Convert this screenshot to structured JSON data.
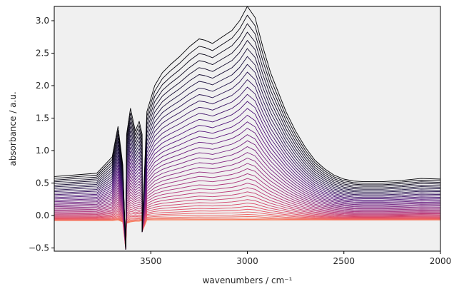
{
  "chart_data": {
    "type": "line",
    "title": "",
    "xlabel": "wavenumbers / cm⁻¹",
    "ylabel": "absorbance / a.u.",
    "xlim": [
      4000,
      2000
    ],
    "ylim": [
      -0.55,
      3.22
    ],
    "x_reversed": true,
    "grid": false,
    "legend": "none",
    "background": "#f0f0f0",
    "colormap": "magma (dark = highest absorbance, pink = lowest)",
    "x_ticks": [
      {
        "value": 3500,
        "label": "3500"
      },
      {
        "value": 3000,
        "label": "3000"
      },
      {
        "value": 2500,
        "label": "2500"
      },
      {
        "value": 2000,
        "label": "2000"
      }
    ],
    "y_ticks": [
      {
        "value": -0.5,
        "label": "−0.5"
      },
      {
        "value": 0.0,
        "label": "0.0"
      },
      {
        "value": 0.5,
        "label": "0.5"
      },
      {
        "value": 1.0,
        "label": "1.0"
      },
      {
        "value": 1.5,
        "label": "1.5"
      },
      {
        "value": 2.0,
        "label": "2.0"
      },
      {
        "value": 2.5,
        "label": "2.5"
      },
      {
        "value": 3.0,
        "label": "3.0"
      }
    ],
    "series_count": 40,
    "series_shape": {
      "x": [
        4000,
        3780,
        3700,
        3670,
        3645,
        3625,
        3605,
        3580,
        3560,
        3545,
        3520,
        3480,
        3440,
        3400,
        3350,
        3300,
        3250,
        3220,
        3180,
        3130,
        3080,
        3040,
        3000,
        2960,
        2920,
        2880,
        2840,
        2800,
        2750,
        2700,
        2650,
        2600,
        2550,
        2500,
        2450,
        2400,
        2300,
        2200,
        2100,
        2000
      ],
      "top_y": [
        0.6,
        0.65,
        0.9,
        1.37,
        0.78,
        1.25,
        1.65,
        1.3,
        1.45,
        1.25,
        1.6,
        2.0,
        2.2,
        2.32,
        2.45,
        2.6,
        2.72,
        2.7,
        2.65,
        2.75,
        2.85,
        3.0,
        3.22,
        3.05,
        2.6,
        2.2,
        1.9,
        1.6,
        1.3,
        1.05,
        0.85,
        0.72,
        0.62,
        0.56,
        0.53,
        0.52,
        0.52,
        0.54,
        0.57,
        0.56
      ],
      "bottom_y": [
        -0.08,
        -0.08,
        -0.08,
        -0.07,
        -0.1,
        -0.12,
        -0.1,
        -0.09,
        -0.09,
        -0.08,
        -0.07,
        -0.07,
        -0.07,
        -0.07,
        -0.07,
        -0.07,
        -0.07,
        -0.07,
        -0.07,
        -0.07,
        -0.07,
        -0.07,
        -0.07,
        -0.07,
        -0.07,
        -0.07,
        -0.07,
        -0.07,
        -0.07,
        -0.07,
        -0.07,
        -0.07,
        -0.07,
        -0.07,
        -0.07,
        -0.07,
        -0.07,
        -0.07,
        -0.07,
        -0.07
      ],
      "dip_y": {
        "3630": -0.52,
        "3545": -0.25
      }
    }
  }
}
